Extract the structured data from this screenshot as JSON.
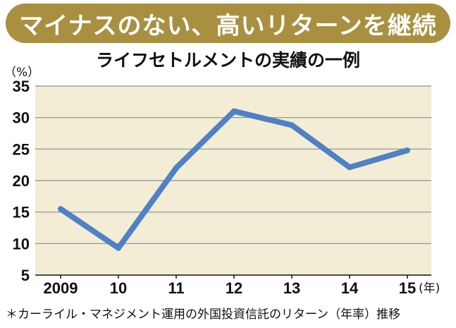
{
  "header": {
    "banner": "マイナスのない、高いリターンを継続",
    "subtitle": "ライフセトルメントの実績の一例"
  },
  "footnote": "＊カーライル・マネジメント運用の外国投資信託のリターン（年率）推移",
  "chart_data": {
    "type": "line",
    "title": "ライフセトルメントの実績の一例",
    "ylabel": "（%）",
    "xlabel": "(年)",
    "categories": [
      "2009",
      "10",
      "11",
      "12",
      "13",
      "14",
      "15"
    ],
    "series": [
      {
        "values": [
          15.5,
          9.3,
          22,
          31,
          28.8,
          22.1,
          24.8
        ]
      }
    ],
    "yticks": [
      5,
      10,
      15,
      20,
      25,
      30,
      35
    ],
    "ylim": [
      5,
      35
    ],
    "grid": true,
    "colors": {
      "line": "#4f81c4",
      "plot_bg": "#f3edd6",
      "grid": "#8c8c8c"
    }
  }
}
